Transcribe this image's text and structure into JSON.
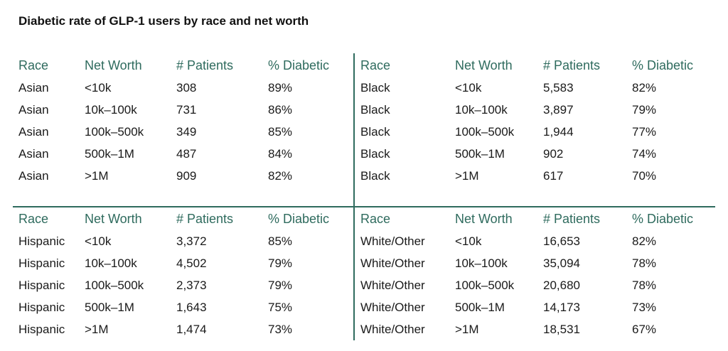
{
  "title": "Diabetic rate of GLP-1 users by race and net worth",
  "colors": {
    "accent": "#2f6b5e",
    "text": "#1a1a1a"
  },
  "chart_data": {
    "type": "table",
    "columns": [
      "Race",
      "Net Worth",
      "# Patients",
      "% Diabetic"
    ],
    "quadrants": [
      {
        "race": "Asian",
        "rows": [
          [
            "Asian",
            "<10k",
            "308",
            "89%"
          ],
          [
            "Asian",
            "10k–100k",
            "731",
            "86%"
          ],
          [
            "Asian",
            "100k–500k",
            "349",
            "85%"
          ],
          [
            "Asian",
            "500k–1M",
            "487",
            "84%"
          ],
          [
            "Asian",
            ">1M",
            "909",
            "82%"
          ]
        ]
      },
      {
        "race": "Black",
        "rows": [
          [
            "Black",
            "<10k",
            "5,583",
            "82%"
          ],
          [
            "Black",
            "10k–100k",
            "3,897",
            "79%"
          ],
          [
            "Black",
            "100k–500k",
            "1,944",
            "77%"
          ],
          [
            "Black",
            "500k–1M",
            "902",
            "74%"
          ],
          [
            "Black",
            ">1M",
            "617",
            "70%"
          ]
        ]
      },
      {
        "race": "Hispanic",
        "rows": [
          [
            "Hispanic",
            "<10k",
            "3,372",
            "85%"
          ],
          [
            "Hispanic",
            "10k–100k",
            "4,502",
            "79%"
          ],
          [
            "Hispanic",
            "100k–500k",
            "2,373",
            "79%"
          ],
          [
            "Hispanic",
            "500k–1M",
            "1,643",
            "75%"
          ],
          [
            "Hispanic",
            ">1M",
            "1,474",
            "73%"
          ]
        ]
      },
      {
        "race": "White/Other",
        "rows": [
          [
            "White/Other",
            "<10k",
            "16,653",
            "82%"
          ],
          [
            "White/Other",
            "10k–100k",
            "35,094",
            "78%"
          ],
          [
            "White/Other",
            "100k–500k",
            "20,680",
            "78%"
          ],
          [
            "White/Other",
            "500k–1M",
            "14,173",
            "73%"
          ],
          [
            "White/Other",
            ">1M",
            "18,531",
            "67%"
          ]
        ]
      }
    ]
  }
}
